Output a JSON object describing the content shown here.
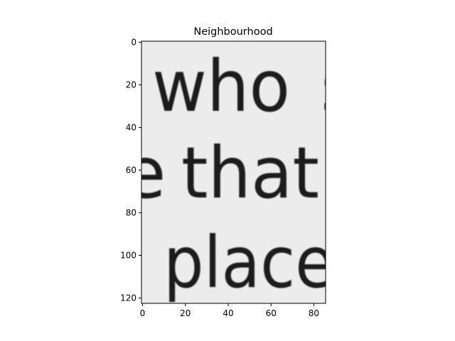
{
  "chart_data": {
    "type": "heatmap",
    "title": "Neighbourhood",
    "xlabel": "",
    "ylabel": "",
    "xlim": [
      -0.5,
      85.5
    ],
    "ylim": [
      122.5,
      -0.5
    ],
    "y_inverted": true,
    "colormap": "gray",
    "grid": false,
    "x_ticks": [
      0,
      20,
      40,
      60,
      80
    ],
    "y_ticks": [
      0,
      20,
      40,
      60,
      80,
      100,
      120
    ],
    "image_content": {
      "lines": [
        {
          "text": "who",
          "partial_left": "",
          "partial_right": "s"
        },
        {
          "text": "that",
          "partial_left": "e",
          "partial_right": ""
        },
        {
          "text": "place",
          "partial_left": "",
          "partial_right": ""
        }
      ]
    }
  }
}
